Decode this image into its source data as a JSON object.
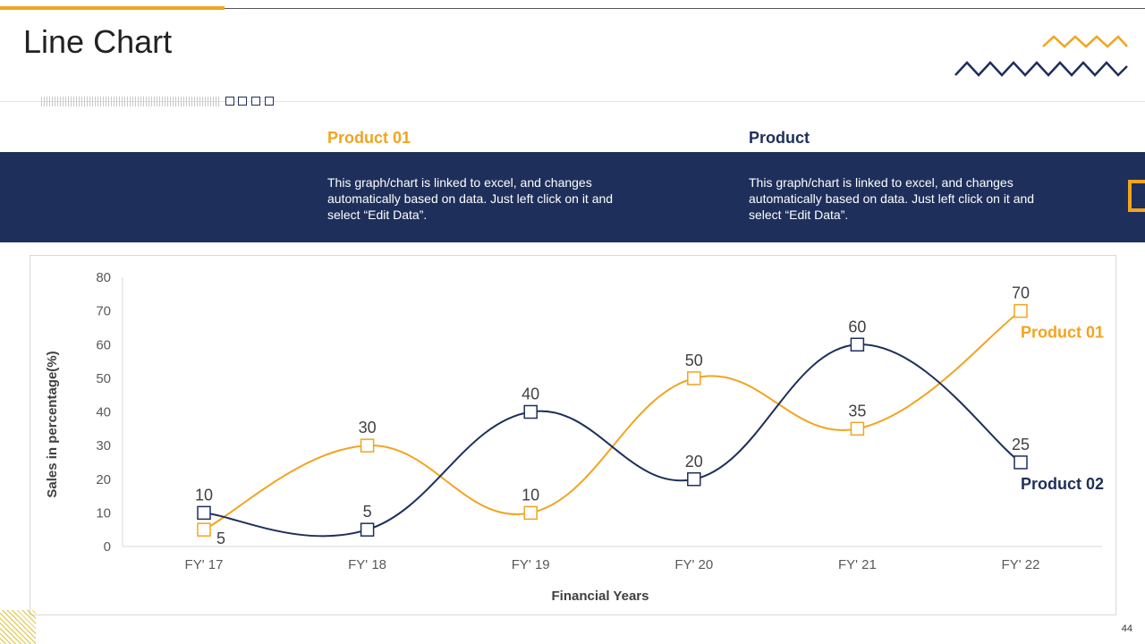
{
  "title": "Line Chart",
  "page_number": "44",
  "colors": {
    "navy": "#1e2f5b",
    "orange": "#f2a41f"
  },
  "products": [
    {
      "heading": "Product 01",
      "description": "This graph/chart is linked to excel, and changes automatically based on data. Just left click on it and select “Edit Data”."
    },
    {
      "heading": "Product",
      "description": "This graph/chart is linked to excel, and changes automatically based on data. Just left click on it and select “Edit Data”."
    }
  ],
  "chart_data": {
    "type": "line",
    "categories": [
      "FY' 17",
      "FY' 18",
      "FY' 19",
      "FY' 20",
      "FY' 21",
      "FY' 22"
    ],
    "series": [
      {
        "name": "Product 01",
        "color": "#f2a41f",
        "values": [
          5,
          30,
          10,
          50,
          35,
          70
        ]
      },
      {
        "name": "Product 02",
        "color": "#1e2f5b",
        "values": [
          10,
          5,
          40,
          20,
          60,
          25
        ]
      }
    ],
    "xlabel": "Financial Years",
    "ylabel": "Sales in percentage(%)",
    "ylim": [
      0,
      80
    ],
    "yticks": [
      0,
      10,
      20,
      30,
      40,
      50,
      60,
      70,
      80
    ],
    "smooth": true,
    "grid": false,
    "legend": "inline at end of lines"
  }
}
